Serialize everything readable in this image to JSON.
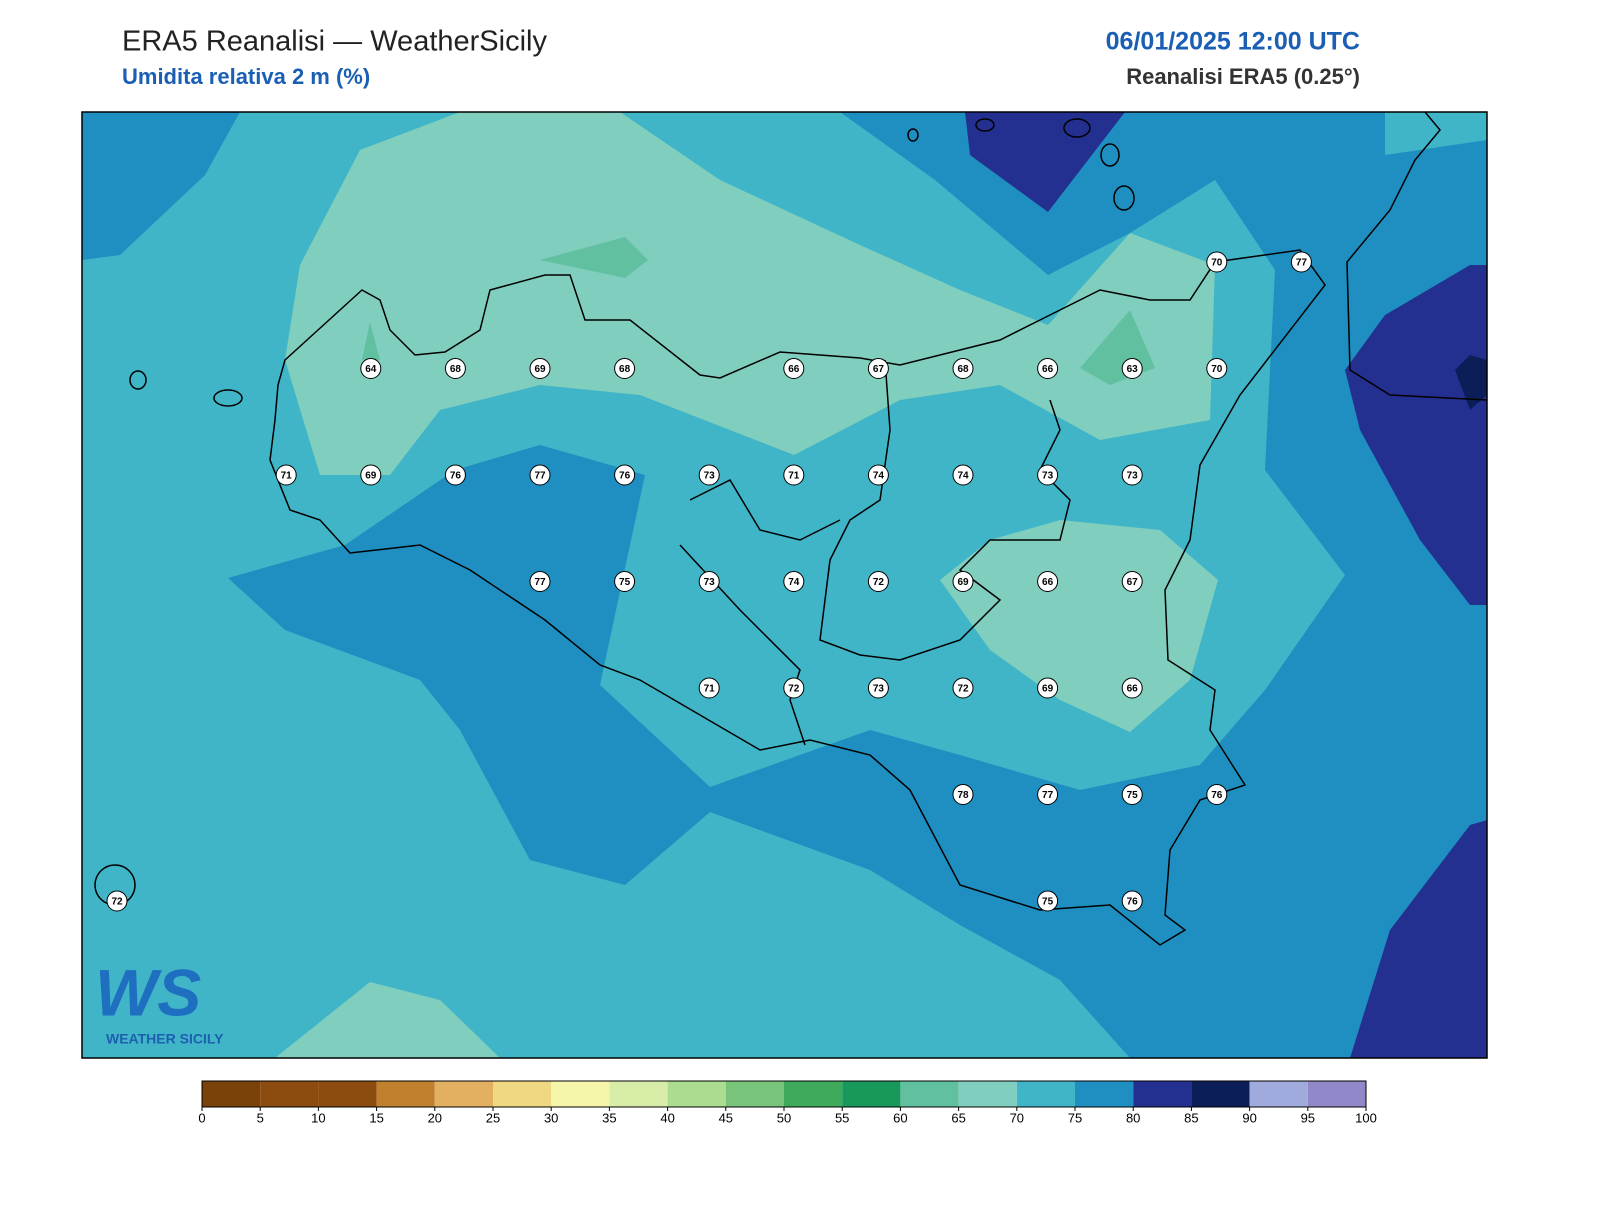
{
  "header": {
    "title": "ERA5 Reanalisi — WeatherSicily",
    "subtitle": "Umidita relativa 2 m (%)",
    "datetime": "06/01/2025 12:00 UTC",
    "source": "Reanalisi ERA5 (0.25°)"
  },
  "stations": [
    [
      null,
      null,
      null,
      null,
      null,
      null,
      null,
      null,
      null,
      null,
      null,
      null,
      null,
      70,
      77
    ],
    [
      null,
      null,
      null,
      64,
      68,
      69,
      68,
      null,
      66,
      67,
      68,
      66,
      63,
      70,
      null
    ],
    [
      null,
      null,
      71,
      69,
      76,
      77,
      76,
      73,
      71,
      74,
      74,
      73,
      73,
      null,
      null
    ],
    [
      null,
      null,
      null,
      null,
      null,
      77,
      75,
      73,
      74,
      72,
      69,
      66,
      67,
      null,
      null
    ],
    [
      null,
      null,
      null,
      null,
      null,
      null,
      null,
      71,
      72,
      73,
      72,
      69,
      66,
      null,
      null
    ],
    [
      null,
      null,
      null,
      null,
      null,
      null,
      null,
      null,
      null,
      null,
      78,
      77,
      75,
      76,
      null
    ],
    [
      72,
      null,
      null,
      null,
      null,
      null,
      null,
      null,
      null,
      null,
      null,
      75,
      76,
      null,
      null
    ]
  ],
  "colorbar": {
    "ticks": [
      0,
      5,
      10,
      15,
      20,
      25,
      30,
      35,
      40,
      45,
      50,
      55,
      60,
      65,
      70,
      75,
      80,
      85,
      90,
      95,
      100
    ],
    "colors": [
      "#7a4208",
      "#8c4c10",
      "#8c4c10",
      "#c0802e",
      "#e2b060",
      "#f0d882",
      "#f6f6aa",
      "#d8eea8",
      "#acdc90",
      "#78c47a",
      "#40aa5c",
      "#18985a",
      "#60c0a0",
      "#80cebe",
      "#40b5c8",
      "#1e8fc0",
      "#243090",
      "#0c1e58",
      "#a0aadc",
      "#9088c8"
    ]
  },
  "logo": {
    "mark": "WS",
    "name": "WEATHER SICILY"
  }
}
